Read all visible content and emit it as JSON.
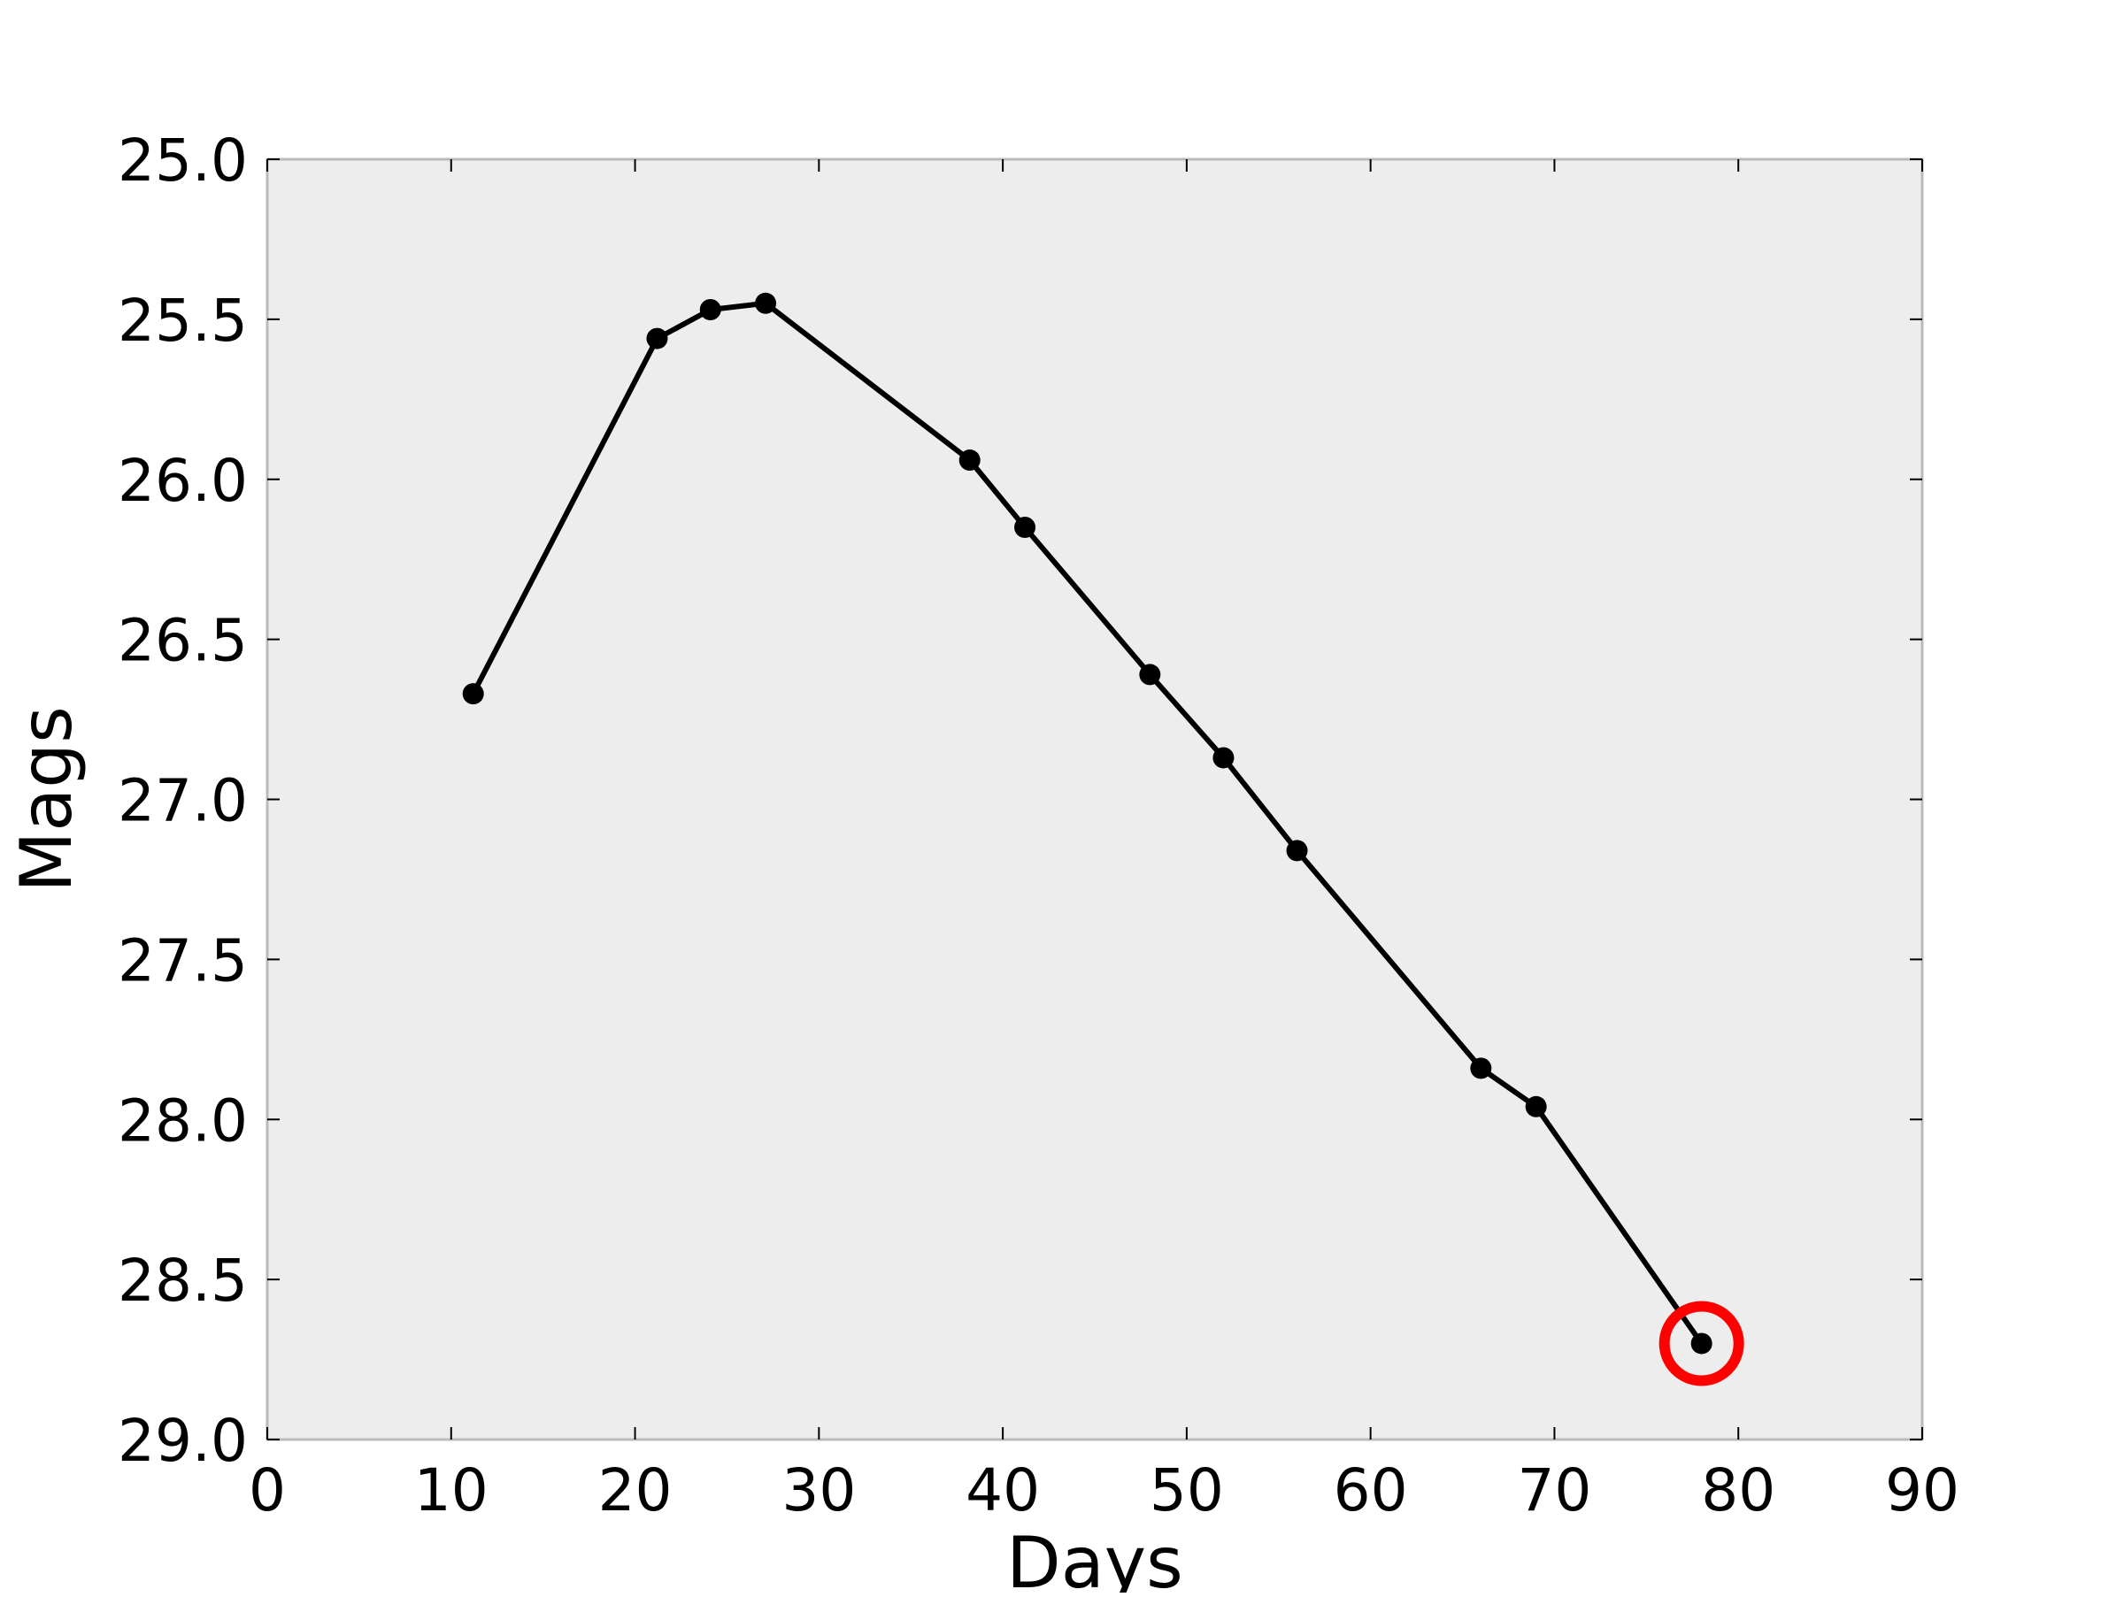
{
  "chart_data": {
    "type": "line",
    "title": "",
    "xlabel": "Days",
    "ylabel": "Mags",
    "xlim": [
      0,
      90
    ],
    "ylim": [
      25.0,
      29.0
    ],
    "y_inverted": true,
    "grid": false,
    "x_ticks": [
      "0",
      "10",
      "20",
      "30",
      "40",
      "50",
      "60",
      "70",
      "80",
      "90"
    ],
    "y_ticks": [
      "25.0",
      "25.5",
      "26.0",
      "26.5",
      "27.0",
      "27.5",
      "28.0",
      "28.5",
      "29.0"
    ],
    "series": [
      {
        "color": "#000000",
        "marker": "circle",
        "x": [
          11.2,
          21.2,
          24.1,
          27.1,
          38.2,
          41.2,
          48.0,
          52.0,
          56.0,
          66.0,
          69.0,
          78.0
        ],
        "y": [
          26.67,
          25.56,
          25.47,
          25.45,
          25.94,
          26.15,
          26.61,
          26.87,
          27.16,
          27.84,
          27.96,
          28.7
        ]
      }
    ],
    "highlight": {
      "x": 78.0,
      "y": 28.7,
      "color": "#ff0000",
      "marker": "ring"
    },
    "plot_background": "#ededed",
    "frame_color": "#bbbbbb"
  }
}
